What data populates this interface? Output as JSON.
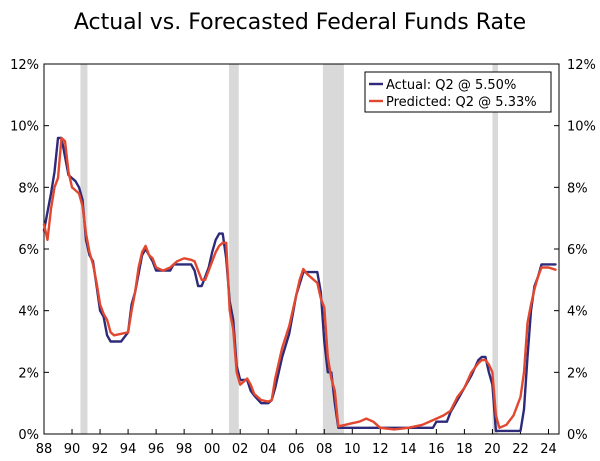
{
  "chart_data": {
    "type": "line",
    "title": "Actual vs. Forecasted Federal Funds Rate",
    "xlabel": "",
    "ylabel": "",
    "x_range": [
      1988,
      2024.75
    ],
    "ylim": [
      0,
      12
    ],
    "y_ticks": [
      0,
      2,
      4,
      6,
      8,
      10,
      12
    ],
    "y_tick_labels": [
      "0%",
      "2%",
      "4%",
      "6%",
      "8%",
      "10%",
      "12%"
    ],
    "x_ticks": [
      1988,
      1990,
      1992,
      1994,
      1996,
      1998,
      2000,
      2002,
      2004,
      2006,
      2008,
      2010,
      2012,
      2014,
      2016,
      2018,
      2020,
      2022,
      2024
    ],
    "x_tick_labels": [
      "88",
      "90",
      "92",
      "94",
      "96",
      "98",
      "00",
      "02",
      "04",
      "06",
      "08",
      "10",
      "12",
      "14",
      "16",
      "18",
      "20",
      "22",
      "24"
    ],
    "recessions": [
      [
        1990.6,
        1991.1
      ],
      [
        2001.2,
        2001.9
      ],
      [
        2007.9,
        2009.4
      ],
      [
        2020.0,
        2020.4
      ]
    ],
    "legend_position": "top-right",
    "series": [
      {
        "name": "Actual: Q2 @ 5.50%",
        "color": "#2e2a7a",
        "x": [
          1988.0,
          1988.25,
          1988.5,
          1988.75,
          1989.0,
          1989.25,
          1989.5,
          1989.75,
          1990.0,
          1990.25,
          1990.5,
          1990.75,
          1991.0,
          1991.25,
          1991.5,
          1991.75,
          1992.0,
          1992.25,
          1992.5,
          1992.75,
          1993.0,
          1993.5,
          1994.0,
          1994.25,
          1994.5,
          1994.75,
          1995.0,
          1995.25,
          1995.5,
          1995.75,
          1996.0,
          1996.5,
          1997.0,
          1997.25,
          1997.5,
          1998.0,
          1998.5,
          1998.75,
          1999.0,
          1999.25,
          1999.5,
          1999.75,
          2000.0,
          2000.25,
          2000.5,
          2000.75,
          2001.0,
          2001.25,
          2001.5,
          2001.75,
          2002.0,
          2002.5,
          2002.75,
          2003.0,
          2003.5,
          2003.75,
          2004.0,
          2004.25,
          2004.5,
          2004.75,
          2005.0,
          2005.5,
          2006.0,
          2006.5,
          2006.75,
          2007.0,
          2007.5,
          2007.75,
          2008.0,
          2008.25,
          2008.5,
          2008.75,
          2009.0,
          2010.0,
          2012.0,
          2014.0,
          2015.75,
          2016.0,
          2016.75,
          2017.0,
          2017.5,
          2018.0,
          2018.5,
          2019.0,
          2019.25,
          2019.5,
          2019.75,
          2020.0,
          2020.25,
          2020.5,
          2021.0,
          2021.75,
          2022.0,
          2022.25,
          2022.5,
          2022.75,
          2023.0,
          2023.25,
          2023.5,
          2024.0,
          2024.5
        ],
        "y": [
          6.6,
          7.2,
          7.8,
          8.5,
          9.6,
          9.6,
          9.0,
          8.4,
          8.3,
          8.2,
          8.0,
          7.6,
          6.3,
          5.8,
          5.6,
          4.8,
          4.0,
          3.8,
          3.2,
          3.0,
          3.0,
          3.0,
          3.3,
          4.2,
          4.6,
          5.2,
          5.8,
          6.0,
          5.8,
          5.6,
          5.3,
          5.3,
          5.3,
          5.5,
          5.5,
          5.5,
          5.5,
          5.3,
          4.8,
          4.8,
          5.1,
          5.4,
          5.9,
          6.3,
          6.5,
          6.5,
          5.7,
          4.3,
          3.7,
          2.2,
          1.75,
          1.75,
          1.4,
          1.25,
          1.0,
          1.0,
          1.0,
          1.1,
          1.5,
          2.0,
          2.5,
          3.25,
          4.5,
          5.25,
          5.25,
          5.25,
          5.25,
          4.6,
          3.0,
          2.0,
          2.0,
          1.0,
          0.2,
          0.2,
          0.2,
          0.2,
          0.2,
          0.4,
          0.4,
          0.7,
          1.1,
          1.5,
          1.9,
          2.4,
          2.5,
          2.5,
          2.0,
          1.6,
          0.1,
          0.1,
          0.1,
          0.1,
          0.1,
          0.8,
          2.5,
          4.0,
          4.8,
          5.1,
          5.5,
          5.5,
          5.5
        ]
      },
      {
        "name": "Predicted: Q2 @ 5.33%",
        "color": "#e2472f",
        "x": [
          1988.0,
          1988.25,
          1988.5,
          1988.75,
          1989.0,
          1989.25,
          1989.5,
          1989.75,
          1990.0,
          1990.25,
          1990.5,
          1990.75,
          1991.0,
          1991.25,
          1991.5,
          1991.75,
          1992.0,
          1992.25,
          1992.5,
          1992.75,
          1993.0,
          1993.5,
          1994.0,
          1994.25,
          1994.5,
          1994.75,
          1995.0,
          1995.25,
          1995.5,
          1995.75,
          1996.0,
          1996.5,
          1997.0,
          1997.5,
          1998.0,
          1998.5,
          1998.75,
          1999.0,
          1999.25,
          1999.5,
          1999.75,
          2000.0,
          2000.25,
          2000.5,
          2000.75,
          2001.0,
          2001.25,
          2001.5,
          2001.75,
          2002.0,
          2002.5,
          2002.75,
          2003.0,
          2003.5,
          2004.0,
          2004.25,
          2004.5,
          2004.75,
          2005.0,
          2005.5,
          2006.0,
          2006.25,
          2006.5,
          2006.75,
          2007.0,
          2007.5,
          2007.75,
          2008.0,
          2008.25,
          2008.5,
          2008.75,
          2009.0,
          2009.5,
          2010.0,
          2010.5,
          2011.0,
          2011.5,
          2012.0,
          2013.0,
          2014.0,
          2015.0,
          2016.0,
          2016.5,
          2017.0,
          2017.5,
          2018.0,
          2018.5,
          2019.0,
          2019.25,
          2019.5,
          2019.75,
          2020.0,
          2020.25,
          2020.5,
          2021.0,
          2021.5,
          2021.75,
          2022.0,
          2022.25,
          2022.5,
          2022.75,
          2023.0,
          2023.25,
          2023.5,
          2024.0,
          2024.5
        ],
        "y": [
          6.8,
          6.3,
          7.3,
          8.0,
          8.3,
          9.6,
          9.5,
          8.5,
          8.0,
          7.9,
          7.8,
          7.4,
          6.5,
          5.9,
          5.5,
          4.9,
          4.2,
          3.9,
          3.7,
          3.3,
          3.2,
          3.25,
          3.3,
          4.0,
          4.6,
          5.4,
          5.9,
          6.1,
          5.8,
          5.7,
          5.4,
          5.3,
          5.4,
          5.6,
          5.7,
          5.65,
          5.6,
          5.3,
          5.0,
          5.0,
          5.3,
          5.6,
          5.9,
          6.1,
          6.2,
          6.2,
          4.0,
          3.4,
          2.0,
          1.6,
          1.8,
          1.6,
          1.3,
          1.1,
          1.05,
          1.1,
          1.8,
          2.3,
          2.8,
          3.5,
          4.5,
          5.0,
          5.35,
          5.2,
          5.1,
          4.9,
          4.4,
          4.1,
          2.5,
          1.8,
          1.4,
          0.25,
          0.3,
          0.35,
          0.4,
          0.5,
          0.4,
          0.2,
          0.15,
          0.2,
          0.3,
          0.5,
          0.6,
          0.75,
          1.2,
          1.5,
          2.0,
          2.3,
          2.4,
          2.4,
          2.25,
          2.0,
          0.6,
          0.2,
          0.3,
          0.6,
          0.9,
          1.2,
          2.0,
          3.6,
          4.2,
          4.7,
          5.1,
          5.4,
          5.4,
          5.33
        ]
      }
    ]
  }
}
